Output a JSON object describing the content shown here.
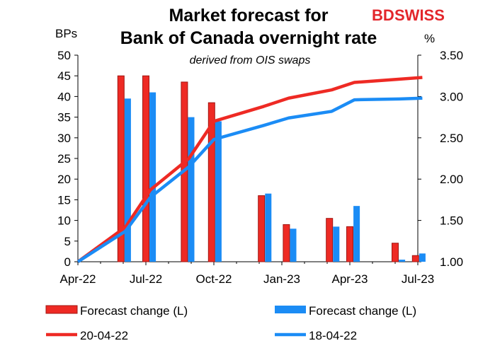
{
  "colors": {
    "red": "#ee2a24",
    "red_dark": "#a01612",
    "blue": "#1b8cf5",
    "axis": "#000000",
    "brand_red": "#e3262b"
  },
  "brand": {
    "part1": "BD",
    "part2": "SWISS"
  },
  "chart_data": {
    "type": "bar",
    "title_line1": "Market forecast for",
    "title_line2": "Bank of Canada overnight rate",
    "subtitle": "derived from OIS swaps",
    "left_unit": "BPs",
    "right_unit": "%",
    "y_left_range": [
      0,
      50
    ],
    "y_right_range": [
      1.0,
      3.5
    ],
    "y_left_ticks": [
      "0",
      "5",
      "10",
      "15",
      "20",
      "25",
      "30",
      "35",
      "40",
      "45",
      "50"
    ],
    "y_right_ticks": [
      "1.00",
      "1.50",
      "2.00",
      "2.50",
      "3.00",
      "3.50"
    ],
    "x_tick_labels": [
      "Apr-22",
      "Jul-22",
      "Oct-22",
      "Jan-23",
      "Apr-23",
      "Jul-23"
    ],
    "x_range_months": [
      0,
      15
    ],
    "bar_series": [
      {
        "name": "Forecast change (L)",
        "color": "red",
        "x_months": [
          1.9,
          3.0,
          4.7,
          5.9,
          8.1,
          9.2,
          11.1,
          12.0,
          14.0,
          14.9
        ],
        "values": [
          45,
          45,
          43.5,
          38.5,
          16,
          9,
          10.5,
          8.5,
          4.5,
          1.5
        ]
      },
      {
        "name": "Forecast change (L)",
        "color": "blue",
        "x_months": [
          2.2,
          3.3,
          5.0,
          6.2,
          8.4,
          9.5,
          11.4,
          12.3,
          14.3,
          15.2
        ],
        "values": [
          39.5,
          41,
          35,
          34,
          16.5,
          8,
          8.5,
          13.5,
          0.5,
          2
        ]
      }
    ],
    "line_series": [
      {
        "name": "20-04-22",
        "color": "red",
        "x_months": [
          0,
          2.1,
          3.2,
          4.9,
          6.0,
          8.2,
          9.3,
          11.2,
          12.2,
          14.2,
          15.2
        ],
        "values": [
          1.0,
          1.42,
          1.87,
          2.25,
          2.7,
          2.88,
          2.98,
          3.08,
          3.17,
          3.21,
          3.23
        ]
      },
      {
        "name": "18-04-22",
        "color": "blue",
        "x_months": [
          0,
          2.1,
          3.2,
          4.9,
          6.0,
          8.2,
          9.3,
          11.2,
          12.2,
          14.2,
          15.2
        ],
        "values": [
          1.0,
          1.37,
          1.78,
          2.15,
          2.48,
          2.65,
          2.74,
          2.82,
          2.96,
          2.97,
          2.98
        ]
      }
    ],
    "legend": [
      {
        "label": "Forecast change (L)",
        "kind": "bar",
        "color": "red"
      },
      {
        "label": "Forecast change (L)",
        "kind": "bar",
        "color": "blue"
      },
      {
        "label": "20-04-22",
        "kind": "line",
        "color": "red"
      },
      {
        "label": "18-04-22",
        "kind": "line",
        "color": "blue"
      }
    ],
    "legend_position": "bottom",
    "grid": false
  }
}
